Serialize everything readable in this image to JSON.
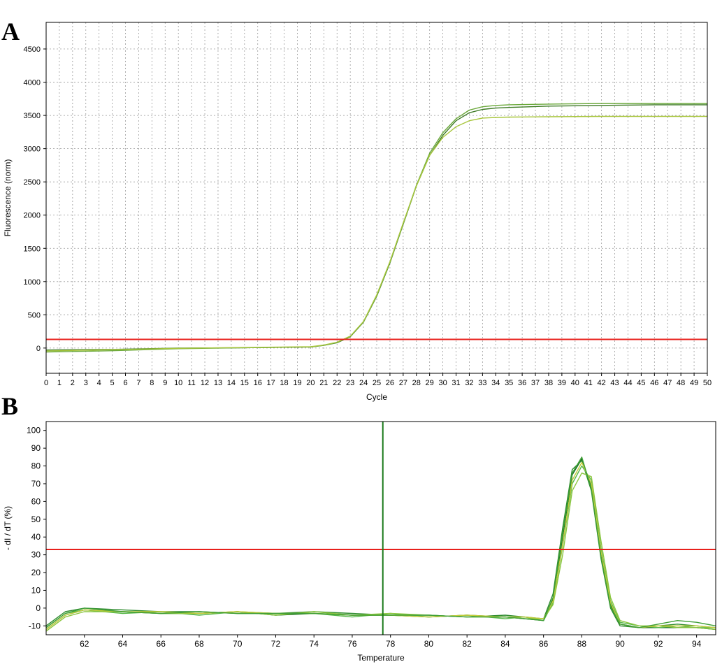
{
  "panels": {
    "a_label": "A",
    "b_label": "B"
  },
  "chart_data": [
    {
      "type": "line",
      "panel": "A",
      "title": "",
      "xlabel": "Cycle",
      "ylabel": "Fluorescence (norm)",
      "xlim": [
        0,
        50
      ],
      "ylim": [
        -380,
        4900
      ],
      "xticks": [
        0,
        1,
        2,
        3,
        4,
        5,
        6,
        7,
        8,
        9,
        10,
        11,
        12,
        13,
        14,
        15,
        16,
        17,
        18,
        19,
        20,
        21,
        22,
        23,
        24,
        25,
        26,
        27,
        28,
        29,
        30,
        31,
        32,
        33,
        34,
        35,
        36,
        37,
        38,
        39,
        40,
        41,
        42,
        43,
        44,
        45,
        46,
        47,
        48,
        49,
        50
      ],
      "yticks": [
        0,
        500,
        1000,
        1500,
        2000,
        2500,
        3000,
        3500,
        4000,
        4500
      ],
      "grid": true,
      "threshold": {
        "y": 130,
        "color": "#e8201c"
      },
      "series": [
        {
          "color": "#3d7a24",
          "x": [
            0,
            5,
            10,
            15,
            20,
            21,
            22,
            23,
            24,
            25,
            26,
            27,
            28,
            29,
            30,
            31,
            32,
            33,
            34,
            35,
            38,
            42,
            46,
            50
          ],
          "values": [
            -30,
            -20,
            0,
            5,
            15,
            40,
            80,
            170,
            390,
            780,
            1280,
            1860,
            2440,
            2900,
            3200,
            3420,
            3540,
            3590,
            3610,
            3620,
            3640,
            3650,
            3660,
            3660
          ]
        },
        {
          "color": "#6aa83a",
          "x": [
            0,
            5,
            10,
            15,
            20,
            21,
            22,
            23,
            24,
            25,
            26,
            27,
            28,
            29,
            30,
            31,
            32,
            33,
            34,
            35,
            38,
            42,
            46,
            50
          ],
          "values": [
            -60,
            -40,
            -10,
            5,
            18,
            42,
            85,
            175,
            395,
            790,
            1290,
            1870,
            2450,
            2930,
            3240,
            3450,
            3580,
            3630,
            3650,
            3660,
            3670,
            3680,
            3680,
            3680
          ]
        },
        {
          "color": "#a8c63c",
          "x": [
            0,
            5,
            10,
            15,
            20,
            21,
            22,
            23,
            24,
            25,
            26,
            27,
            28,
            29,
            30,
            31,
            32,
            33,
            34,
            35,
            38,
            42,
            46,
            50
          ],
          "values": [
            -45,
            -25,
            -5,
            8,
            20,
            45,
            88,
            180,
            400,
            800,
            1300,
            1880,
            2440,
            2900,
            3170,
            3330,
            3420,
            3460,
            3470,
            3475,
            3480,
            3485,
            3485,
            3485
          ]
        }
      ]
    },
    {
      "type": "line",
      "panel": "B",
      "title": "",
      "xlabel": "Temperature",
      "ylabel": "- dI / dT (%)",
      "xlim": [
        60,
        95
      ],
      "ylim": [
        -15,
        105
      ],
      "xticks": [
        62,
        64,
        66,
        68,
        70,
        72,
        74,
        76,
        78,
        80,
        82,
        84,
        86,
        88,
        90,
        92,
        94
      ],
      "yticks": [
        -10,
        0,
        10,
        20,
        30,
        40,
        50,
        60,
        70,
        80,
        90,
        100
      ],
      "grid": false,
      "threshold": {
        "y": 33,
        "color": "#e8201c"
      },
      "marker_line": {
        "x": 77.6,
        "color": "#1b7a1b"
      },
      "series": [
        {
          "color": "#0f6a1e",
          "x": [
            60,
            61,
            62,
            64,
            66,
            68,
            70,
            72,
            74,
            76,
            78,
            80,
            82,
            84,
            85,
            86,
            86.5,
            87,
            87.5,
            88,
            88.5,
            89,
            89.5,
            90,
            91,
            92,
            93,
            94,
            95
          ],
          "values": [
            -12,
            -4,
            -1,
            -2,
            -3,
            -3,
            -2,
            -4,
            -3,
            -4,
            -4,
            -5,
            -4,
            -5,
            -6,
            -7,
            5,
            40,
            75,
            84,
            68,
            30,
            2,
            -9,
            -11,
            -11,
            -11,
            -11,
            -12
          ]
        },
        {
          "color": "#2e8b2e",
          "x": [
            60,
            61,
            62,
            64,
            66,
            68,
            70,
            72,
            74,
            76,
            78,
            80,
            82,
            84,
            85,
            86,
            86.5,
            87,
            87.5,
            88,
            88.5,
            89,
            89.5,
            90,
            91,
            92,
            93,
            94,
            95
          ],
          "values": [
            -10,
            -2,
            0,
            -1,
            -2,
            -2,
            -3,
            -3,
            -2,
            -3,
            -4,
            -4,
            -5,
            -4,
            -5,
            -6,
            8,
            45,
            78,
            83,
            66,
            28,
            0,
            -10,
            -11,
            -10,
            -9,
            -10,
            -11
          ]
        },
        {
          "color": "#58b84a",
          "x": [
            60,
            61,
            62,
            64,
            66,
            68,
            70,
            72,
            74,
            76,
            78,
            80,
            82,
            84,
            85,
            86,
            86.5,
            87,
            87.5,
            88,
            88.5,
            89,
            89.5,
            90,
            91,
            92,
            93,
            94,
            95
          ],
          "values": [
            -11,
            -3,
            -1,
            -3,
            -2,
            -4,
            -2,
            -3,
            -3,
            -5,
            -3,
            -5,
            -4,
            -6,
            -5,
            -7,
            3,
            35,
            70,
            80,
            72,
            34,
            4,
            -8,
            -10,
            -11,
            -10,
            -11,
            -11
          ]
        },
        {
          "color": "#8cc63f",
          "x": [
            60,
            61,
            62,
            64,
            66,
            68,
            70,
            72,
            74,
            76,
            78,
            80,
            82,
            84,
            85,
            86,
            86.5,
            87,
            87.5,
            88,
            88.5,
            89,
            89.5,
            90,
            91,
            92,
            93,
            94,
            95
          ],
          "values": [
            -13,
            -5,
            -2,
            -2,
            -3,
            -3,
            -2,
            -4,
            -2,
            -4,
            -3,
            -4,
            -5,
            -5,
            -6,
            -6,
            2,
            30,
            66,
            76,
            74,
            38,
            6,
            -7,
            -10,
            -10,
            -11,
            -11,
            -12
          ]
        },
        {
          "color": "#c4cc3a",
          "x": [
            60,
            61,
            62,
            64,
            66,
            68,
            70,
            72,
            74,
            76,
            78,
            80,
            82,
            84,
            85,
            86,
            86.5,
            87,
            87.5,
            88,
            88.5,
            89,
            89.5,
            90,
            91,
            92,
            93,
            94,
            95
          ],
          "values": [
            -12,
            -4,
            -1,
            -2,
            -2,
            -3,
            -2,
            -3,
            -3,
            -4,
            -4,
            -5,
            -4,
            -5,
            -5,
            -6,
            4,
            36,
            72,
            82,
            70,
            32,
            3,
            -9,
            -11,
            -10,
            -10,
            -10,
            -11
          ]
        },
        {
          "color": "#3f9f36",
          "x": [
            60,
            61,
            62,
            64,
            66,
            68,
            70,
            72,
            74,
            76,
            78,
            80,
            82,
            84,
            85,
            86,
            86.5,
            87,
            87.5,
            88,
            88.5,
            89,
            89.5,
            90,
            91,
            92,
            93,
            94,
            95
          ],
          "values": [
            -11,
            -3,
            0,
            -2,
            -3,
            -2,
            -3,
            -3,
            -3,
            -4,
            -4,
            -4,
            -5,
            -5,
            -6,
            -7,
            6,
            42,
            76,
            85,
            67,
            29,
            1,
            -9,
            -11,
            -9,
            -7,
            -8,
            -10
          ]
        }
      ]
    }
  ]
}
